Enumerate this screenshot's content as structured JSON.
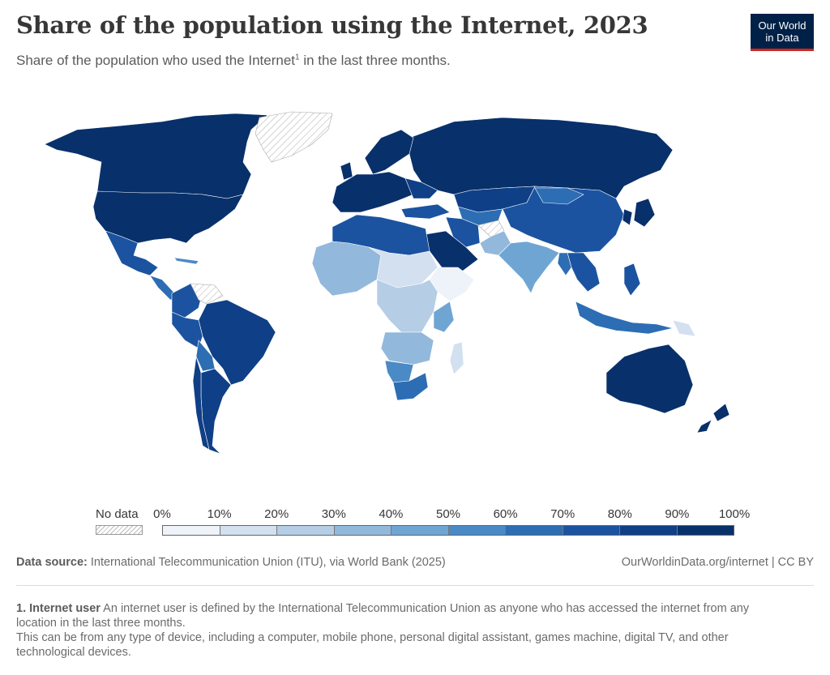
{
  "header": {
    "title": "Share of the population using the Internet, 2023",
    "subtitle": "Share of the population who used the Internet",
    "subtitle_sup": "1",
    "subtitle_end": " in the last three months."
  },
  "logo": {
    "line1": "Our World",
    "line2": "in Data"
  },
  "legend": {
    "no_data_label": "No data",
    "ticks": [
      "0%",
      "10%",
      "20%",
      "30%",
      "40%",
      "50%",
      "60%",
      "70%",
      "80%",
      "90%",
      "100%"
    ],
    "colors": [
      "#eef2f9",
      "#d3e0f0",
      "#b5cde5",
      "#92b8dc",
      "#6fa5d3",
      "#4a8ac6",
      "#2d6db4",
      "#1b53a0",
      "#0f3f86",
      "#08306b"
    ]
  },
  "footer": {
    "source_label": "Data source:",
    "source_text": " International Telecommunication Union (ITU), via World Bank (2025)",
    "url": "OurWorldinData.org/internet | CC BY"
  },
  "footnote": {
    "term": "1. Internet user",
    "definition": " An internet user is defined by the International Telecommunication Union as anyone who has accessed the internet from any location in the last three months.",
    "line2": "This can be from any type of device, including a computer, mobile phone, personal digital assistant, games machine, digital TV, and other technological devices."
  }
}
